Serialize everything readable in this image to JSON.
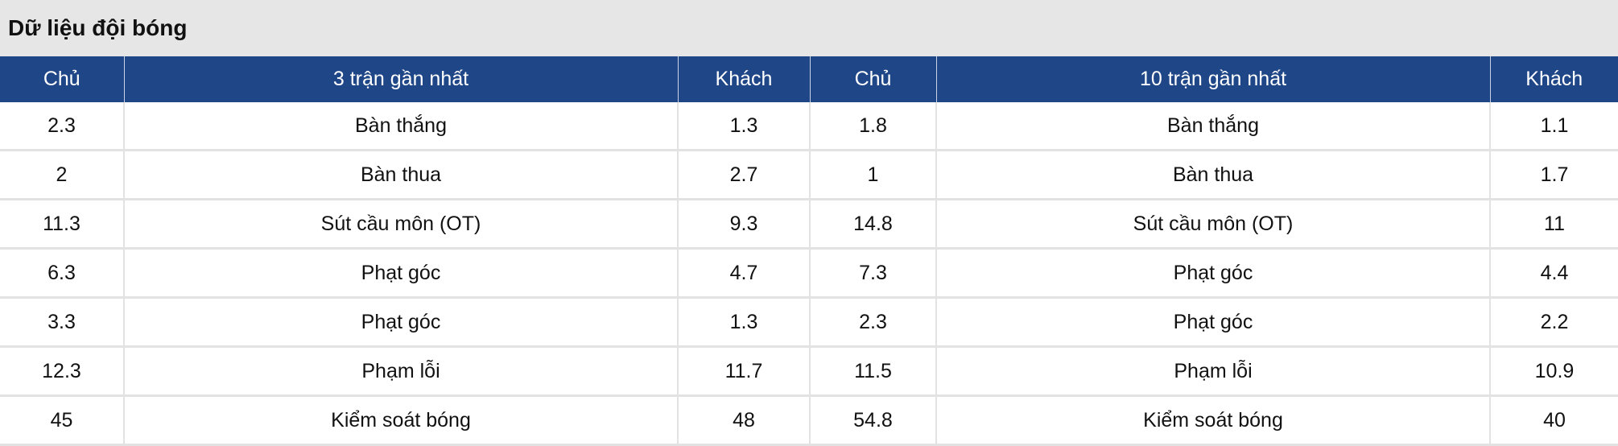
{
  "title": "Dữ liệu đội bóng",
  "headers": [
    "Chủ",
    "3 trận gần nhất",
    "Khách",
    "Chủ",
    "10 trận gần nhất",
    "Khách"
  ],
  "rows": [
    [
      "2.3",
      "Bàn thắng",
      "1.3",
      "1.8",
      "Bàn thắng",
      "1.1"
    ],
    [
      "2",
      "Bàn thua",
      "2.7",
      "1",
      "Bàn thua",
      "1.7"
    ],
    [
      "11.3",
      "Sút cầu môn (OT)",
      "9.3",
      "14.8",
      "Sút cầu môn (OT)",
      "11"
    ],
    [
      "6.3",
      "Phạt góc",
      "4.7",
      "7.3",
      "Phạt góc",
      "4.4"
    ],
    [
      "3.3",
      "Phạt góc",
      "1.3",
      "2.3",
      "Phạt góc",
      "2.2"
    ],
    [
      "12.3",
      "Phạm lỗi",
      "11.7",
      "11.5",
      "Phạm lỗi",
      "10.9"
    ],
    [
      "45",
      "Kiểm soát bóng",
      "48",
      "54.8",
      "Kiểm soát bóng",
      "40"
    ]
  ]
}
